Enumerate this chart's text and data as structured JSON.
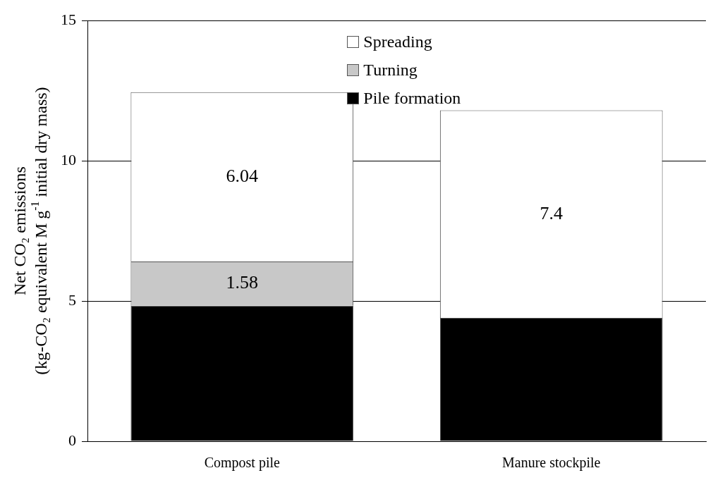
{
  "chart_data": {
    "type": "bar",
    "stacked": true,
    "categories": [
      "Compost pile",
      "Manure stockpile"
    ],
    "ylabel": "Net CO₂ emissions\n(kg-CO₂ equivalent M g$^{-1}$ initial dry mass)",
    "ylim": [
      0,
      15
    ],
    "yticks": [
      0,
      5,
      10,
      15
    ],
    "grid": "y",
    "legend": "top",
    "series": [
      {
        "name": "Pile formation",
        "color": "#000000",
        "values": [
          4.83,
          4.4
        ],
        "value_labels": [
          null,
          null
        ]
      },
      {
        "name": "Turning",
        "color": "#c8c8c8",
        "values": [
          1.58,
          0
        ],
        "value_labels": [
          "1.58",
          null
        ]
      },
      {
        "name": "Spreading",
        "color": "#ffffff",
        "values": [
          6.04,
          7.4
        ],
        "value_labels": [
          "6.04",
          "7.4"
        ]
      }
    ]
  }
}
